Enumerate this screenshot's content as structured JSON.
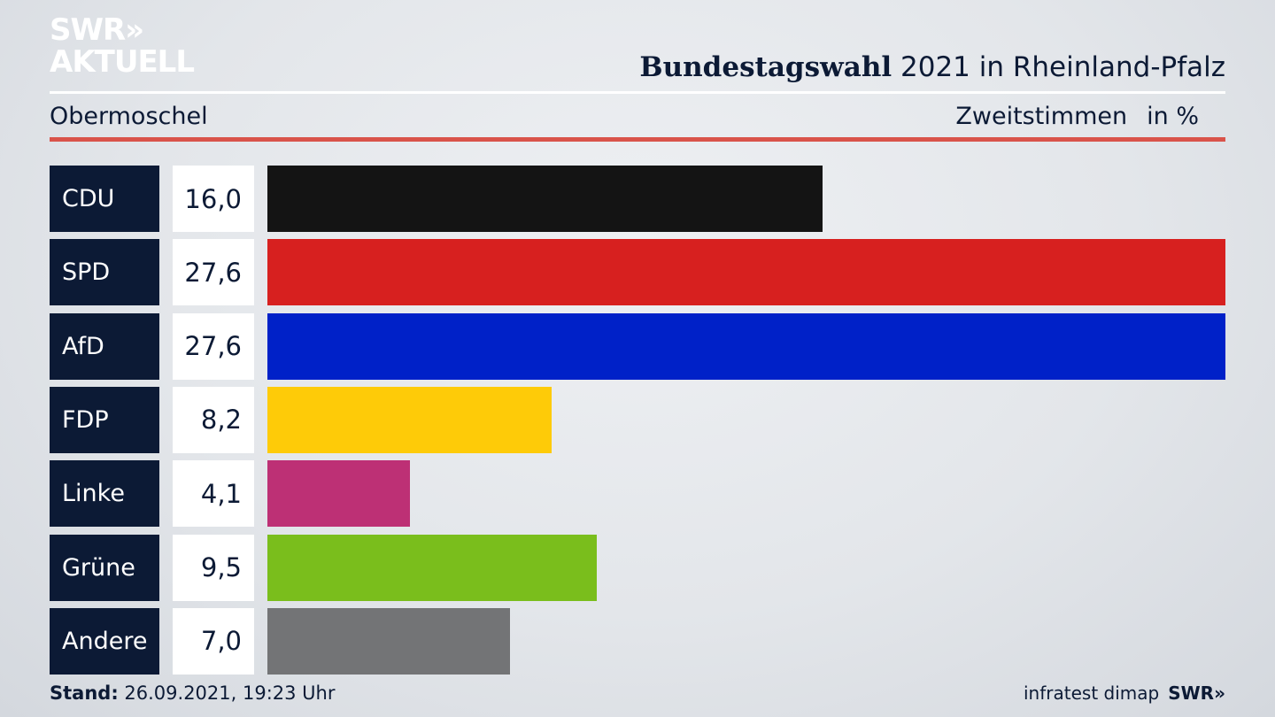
{
  "logo": {
    "line1": "SWR»",
    "line2": "AKTUELL"
  },
  "header": {
    "title_bold": "Bundestagswahl",
    "title_rest": " 2021 in Rheinland-Pfalz",
    "location": "Obermoschel",
    "vote_type": "Zweitstimmen",
    "unit": "in %"
  },
  "chart_data": {
    "type": "bar",
    "orientation": "horizontal",
    "title": "Bundestagswahl 2021 in Rheinland-Pfalz",
    "subtitle": "Obermoschel",
    "xlabel": "Zweitstimmen",
    "unit": "in %",
    "categories": [
      "CDU",
      "SPD",
      "AfD",
      "FDP",
      "Linke",
      "Grüne",
      "Andere"
    ],
    "values": [
      16.0,
      27.6,
      27.6,
      8.2,
      4.1,
      9.5,
      7.0
    ],
    "value_labels": [
      "16,0",
      "27,6",
      "27,6",
      "8,2",
      "4,1",
      "9,5",
      "7,0"
    ],
    "colors": [
      "#141414",
      "#d7201f",
      "#0021c8",
      "#fecb08",
      "#bd3075",
      "#7abe1c",
      "#737476"
    ],
    "xlim": [
      0,
      27.6
    ]
  },
  "footer": {
    "stand_label": "Stand:",
    "stand_value": " 26.09.2021, 19:23 Uhr",
    "source": "infratest dimap",
    "brand": "SWR»"
  }
}
